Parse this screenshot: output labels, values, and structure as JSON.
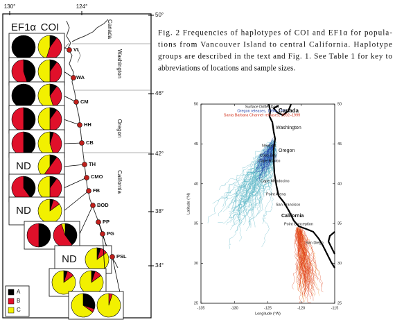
{
  "figure": {
    "lon_labels": [
      {
        "value": 130,
        "label": "130°"
      },
      {
        "value": 124,
        "label": "124°"
      }
    ],
    "lat_labels": [
      {
        "value": 50,
        "label": "50°"
      },
      {
        "value": 46,
        "label": "46°"
      },
      {
        "value": 42,
        "label": "42°"
      },
      {
        "value": 38,
        "label": "38°"
      },
      {
        "value": 34,
        "label": "34°"
      }
    ],
    "column_headers": [
      "EF1α",
      "COI"
    ],
    "regions": [
      "Canada",
      "Washington",
      "Oregon",
      "California"
    ],
    "sites": [
      "VI",
      "WA",
      "CM",
      "HH",
      "CB",
      "TH",
      "CMO",
      "FB",
      "BOD",
      "PP",
      "PG",
      "PSL"
    ],
    "legend": [
      {
        "label": "A",
        "color": "#000000"
      },
      {
        "label": "B",
        "color": "#e0102a"
      },
      {
        "label": "C",
        "color": "#f2f000"
      }
    ],
    "rows": [
      {
        "ef1a": [
          100,
          0,
          0
        ],
        "coi": [
          10,
          45,
          45
        ]
      },
      {
        "ef1a": [
          45,
          55,
          0
        ],
        "coi": [
          10,
          40,
          50
        ]
      },
      {
        "ef1a": [
          100,
          0,
          0
        ],
        "coi": [
          10,
          35,
          55
        ]
      },
      {
        "ef1a": [
          50,
          50,
          0
        ],
        "coi": [
          10,
          40,
          50
        ]
      },
      {
        "ef1a": [
          50,
          50,
          0
        ],
        "coi": [
          5,
          40,
          55
        ]
      },
      {
        "ef1a": "ND",
        "coi": [
          10,
          50,
          40
        ]
      },
      {
        "ef1a": [
          40,
          60,
          0
        ],
        "coi": [
          10,
          40,
          50
        ]
      },
      {
        "ef1a": "ND",
        "coi": [
          5,
          10,
          85
        ]
      },
      {
        "ef1a": [
          50,
          50,
          0
        ],
        "coi": [
          40,
          55,
          5
        ]
      },
      {
        "ef1a": "ND",
        "coi": [
          5,
          10,
          85
        ]
      },
      {
        "ef1a": [
          5,
          10,
          85
        ],
        "coi": [
          5,
          10,
          85
        ]
      },
      {
        "ef1a": [
          30,
          5,
          65
        ],
        "coi": [
          0,
          5,
          95
        ]
      }
    ]
  },
  "caption": {
    "lines": [
      "Fig. 2 Frequencies of haplotypes of COI and EF1α for popula-",
      "tions from Vancouver Island to central California. Haplotype",
      "groups are described in the text and Fig. 1. See Table 1 for key to",
      "abbreviations of locations and sample sizes."
    ]
  },
  "drifter_chart": {
    "title": "Surface Drifter Data",
    "subtitles": [
      "Oregon releases, 1994–1999",
      "Santa Barbara Channel releases, 1992–1999"
    ],
    "subtitle_colors": [
      "#1f3fa8",
      "#d0301a"
    ],
    "xlabel": "Longitude (°W)",
    "ylabel": "Latitude (°N)",
    "xlim": [
      -135,
      -115
    ],
    "ylim": [
      25,
      50
    ],
    "xticks": [
      -135,
      -130,
      -125,
      -120,
      -115
    ],
    "yticks": [
      25,
      30,
      35,
      40,
      45,
      50
    ],
    "regions": [
      "Canada",
      "Washington",
      "Oregon",
      "California"
    ],
    "places": [
      "Newport",
      "Coos Bay",
      "Cape Blanco",
      "Cape Mendocino",
      "Point Arena",
      "San Francisco",
      "Point Conception",
      "San Diego"
    ]
  }
}
